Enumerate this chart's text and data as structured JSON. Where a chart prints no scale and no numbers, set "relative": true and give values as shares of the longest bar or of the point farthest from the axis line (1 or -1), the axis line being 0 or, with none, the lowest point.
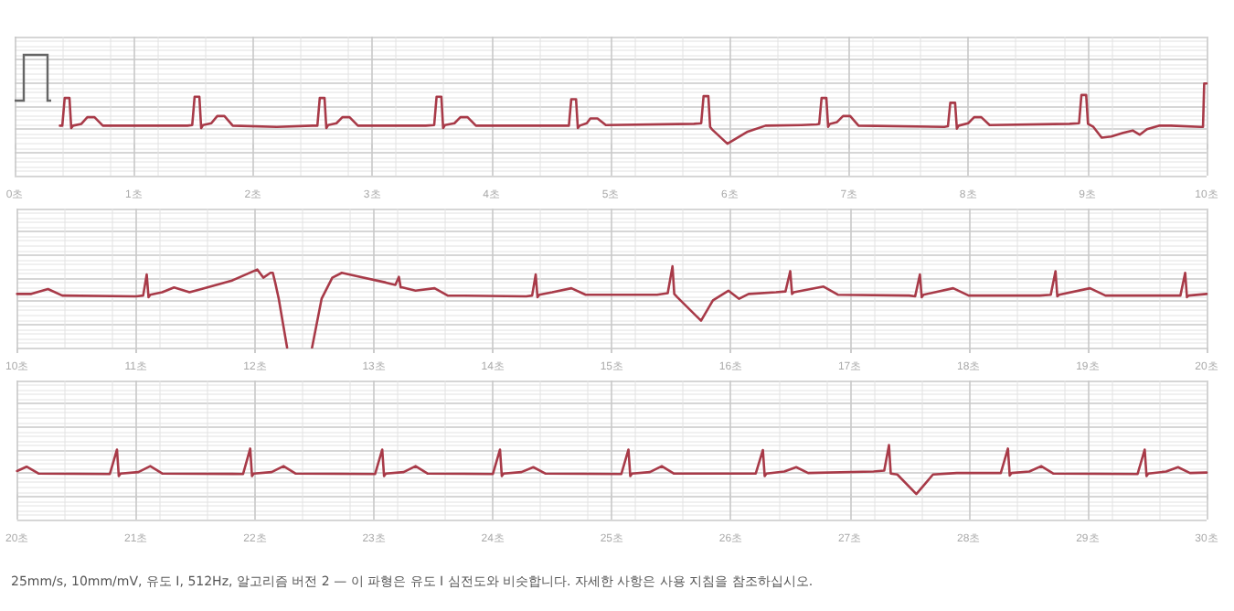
{
  "chart_data": [
    {
      "type": "line",
      "relative": true,
      "grid": true,
      "marker": "none",
      "line_style": "solid",
      "xlim": [
        0,
        10
      ],
      "xticks": [
        {
          "value": 0,
          "label": "0초"
        },
        {
          "value": 1,
          "label": "1초"
        },
        {
          "value": 2,
          "label": "2초"
        },
        {
          "value": 3,
          "label": "3초"
        },
        {
          "value": 4,
          "label": "4초"
        },
        {
          "value": 5,
          "label": "5초"
        },
        {
          "value": 6,
          "label": "6초"
        },
        {
          "value": 7,
          "label": "7초"
        },
        {
          "value": 8,
          "label": "8초"
        },
        {
          "value": 9,
          "label": "9초"
        },
        {
          "value": 10,
          "label": "10초"
        }
      ],
      "series": [
        {
          "color": "#a83a48",
          "x": [
            0.38,
            0.4,
            0.42,
            0.46,
            0.475,
            0.49,
            0.56,
            0.61,
            0.67,
            0.74,
            1.45,
            1.49,
            1.51,
            1.55,
            1.565,
            1.58,
            1.65,
            1.7,
            1.76,
            1.83,
            2.2,
            2.5,
            2.54,
            2.56,
            2.6,
            2.615,
            2.63,
            2.7,
            2.75,
            2.81,
            2.88,
            3.45,
            3.52,
            3.54,
            3.58,
            3.595,
            3.61,
            3.69,
            3.74,
            3.8,
            3.87,
            4.6,
            4.65,
            4.67,
            4.71,
            4.725,
            4.74,
            4.8,
            4.83,
            4.89,
            4.96,
            5.7,
            5.76,
            5.78,
            5.82,
            5.835,
            5.85,
            5.98,
            6.15,
            6.3,
            6.6,
            6.73,
            6.75,
            6.77,
            6.81,
            6.825,
            6.84,
            6.9,
            6.95,
            7.01,
            7.08,
            7.8,
            7.83,
            7.85,
            7.89,
            7.905,
            7.92,
            8.0,
            8.05,
            8.11,
            8.18,
            8.85,
            8.93,
            8.95,
            8.99,
            9.005,
            9.05,
            9.12,
            9.2,
            9.3,
            9.38,
            9.44,
            9.5,
            9.6,
            9.7,
            9.95,
            9.97,
            9.98,
            10.0
          ],
          "values": [
            0.3,
            0.3,
            0.76,
            0.76,
            0.26,
            0.3,
            0.33,
            0.44,
            0.44,
            0.3,
            0.3,
            0.31,
            0.78,
            0.78,
            0.26,
            0.31,
            0.34,
            0.46,
            0.46,
            0.3,
            0.28,
            0.3,
            0.3,
            0.76,
            0.76,
            0.26,
            0.31,
            0.34,
            0.44,
            0.44,
            0.3,
            0.3,
            0.31,
            0.78,
            0.78,
            0.26,
            0.31,
            0.34,
            0.44,
            0.44,
            0.3,
            0.3,
            0.3,
            0.74,
            0.74,
            0.26,
            0.3,
            0.34,
            0.42,
            0.42,
            0.31,
            0.33,
            0.34,
            0.79,
            0.79,
            0.28,
            0.24,
            0.0,
            0.2,
            0.3,
            0.31,
            0.32,
            0.33,
            0.76,
            0.76,
            0.28,
            0.33,
            0.36,
            0.46,
            0.46,
            0.3,
            0.28,
            0.29,
            0.68,
            0.68,
            0.25,
            0.3,
            0.34,
            0.44,
            0.44,
            0.31,
            0.33,
            0.34,
            0.81,
            0.81,
            0.33,
            0.28,
            0.1,
            0.12,
            0.18,
            0.22,
            0.15,
            0.24,
            0.3,
            0.3,
            0.28,
            0.28,
            1.0,
            1.0
          ]
        }
      ]
    },
    {
      "type": "line",
      "relative": true,
      "grid": true,
      "marker": "none",
      "line_style": "solid",
      "xlim": [
        10,
        20
      ],
      "xticks": [
        {
          "value": 10,
          "label": "10초"
        },
        {
          "value": 11,
          "label": "11초"
        },
        {
          "value": 12,
          "label": "12초"
        },
        {
          "value": 13,
          "label": "13초"
        },
        {
          "value": 14,
          "label": "14초"
        },
        {
          "value": 15,
          "label": "15초"
        },
        {
          "value": 16,
          "label": "16초"
        },
        {
          "value": 17,
          "label": "17초"
        },
        {
          "value": 18,
          "label": "18초"
        },
        {
          "value": 19,
          "label": "19초"
        },
        {
          "value": 20,
          "label": "20초"
        }
      ],
      "series": [
        {
          "color": "#a83a48",
          "x": [
            10.0,
            10.12,
            10.26,
            10.38,
            11.0,
            11.06,
            11.09,
            11.105,
            11.12,
            11.22,
            11.32,
            11.45,
            11.55,
            11.8,
            12.02,
            12.07,
            12.13,
            12.15,
            12.17,
            12.2,
            12.27,
            12.33,
            12.48,
            12.56,
            12.65,
            12.73,
            12.85,
            13.1,
            13.18,
            13.21,
            13.225,
            13.24,
            13.35,
            13.51,
            13.62,
            14.28,
            14.33,
            14.36,
            14.375,
            14.39,
            14.5,
            14.66,
            14.78,
            15.38,
            15.47,
            15.51,
            15.525,
            15.55,
            15.75,
            15.85,
            15.98,
            16.07,
            16.15,
            16.38,
            16.46,
            16.5,
            16.515,
            16.53,
            16.78,
            16.9,
            17.5,
            17.55,
            17.59,
            17.605,
            17.62,
            17.87,
            18.0,
            18.6,
            18.69,
            18.73,
            18.745,
            18.76,
            19.02,
            19.15,
            19.6,
            19.78,
            19.82,
            19.835,
            19.85,
            20.0
          ],
          "values": [
            0.66,
            0.66,
            0.72,
            0.64,
            0.63,
            0.64,
            0.9,
            0.62,
            0.65,
            0.68,
            0.74,
            0.68,
            0.72,
            0.82,
            0.96,
            0.86,
            0.92,
            0.92,
            0.8,
            0.6,
            0.0,
            null,
            0.0,
            0.6,
            0.86,
            0.92,
            0.88,
            0.8,
            0.77,
            0.87,
            0.74,
            0.74,
            0.7,
            0.73,
            0.64,
            0.63,
            0.64,
            0.9,
            0.62,
            0.65,
            0.68,
            0.73,
            0.65,
            0.65,
            0.67,
            1.0,
            0.66,
            0.62,
            0.33,
            0.58,
            0.7,
            0.6,
            0.66,
            0.68,
            0.69,
            0.94,
            0.66,
            0.68,
            0.75,
            0.65,
            0.64,
            0.63,
            0.9,
            0.62,
            0.65,
            0.73,
            0.64,
            0.64,
            0.65,
            0.94,
            0.63,
            0.65,
            0.73,
            0.64,
            0.64,
            0.64,
            0.92,
            0.62,
            0.64,
            0.66
          ]
        }
      ]
    },
    {
      "type": "line",
      "relative": true,
      "grid": true,
      "marker": "none",
      "line_style": "solid",
      "xlim": [
        20,
        30
      ],
      "xticks": [
        {
          "value": 20,
          "label": "20초"
        },
        {
          "value": 21,
          "label": "21초"
        },
        {
          "value": 22,
          "label": "22초"
        },
        {
          "value": 23,
          "label": "23초"
        },
        {
          "value": 24,
          "label": "24초"
        },
        {
          "value": 25,
          "label": "25초"
        },
        {
          "value": 26,
          "label": "26초"
        },
        {
          "value": 27,
          "label": "27초"
        },
        {
          "value": 28,
          "label": "28초"
        },
        {
          "value": 29,
          "label": "29초"
        },
        {
          "value": 30,
          "label": "30초"
        }
      ],
      "annotations": [
        "25mm/s, 10mm/mV, 유도 I, 512Hz, 알고리즘 버전 2 — 이 파형은 유도 I 심전도와 비슷합니다. 자세한 사항은 사용 지침을 참조하십시오."
      ],
      "series": [
        {
          "color": "#a83a48",
          "x": [
            20.0,
            20.08,
            20.18,
            20.78,
            20.84,
            20.855,
            20.87,
            21.02,
            21.12,
            21.22,
            21.9,
            21.96,
            21.975,
            21.99,
            22.14,
            22.24,
            22.34,
            23.01,
            23.07,
            23.085,
            23.1,
            23.25,
            23.35,
            23.45,
            24.0,
            24.06,
            24.075,
            24.09,
            24.24,
            24.34,
            24.44,
            25.08,
            25.14,
            25.155,
            25.17,
            25.32,
            25.42,
            25.52,
            26.21,
            26.27,
            26.285,
            26.3,
            26.45,
            26.55,
            26.65,
            27.2,
            27.29,
            27.33,
            27.345,
            27.4,
            27.56,
            27.7,
            27.9,
            28.1,
            28.27,
            28.33,
            28.345,
            28.36,
            28.51,
            28.61,
            28.71,
            29.42,
            29.48,
            29.495,
            29.51,
            29.66,
            29.76,
            29.86,
            30.0
          ],
          "values": [
            0.47,
            0.56,
            0.42,
            0.41,
            0.91,
            0.37,
            0.42,
            0.45,
            0.57,
            0.42,
            0.41,
            0.93,
            0.37,
            0.42,
            0.45,
            0.57,
            0.42,
            0.41,
            0.91,
            0.37,
            0.42,
            0.45,
            0.57,
            0.42,
            0.41,
            0.91,
            0.37,
            0.42,
            0.45,
            0.55,
            0.42,
            0.41,
            0.91,
            0.37,
            0.42,
            0.45,
            0.57,
            0.42,
            0.42,
            0.9,
            0.37,
            0.42,
            0.46,
            0.55,
            0.43,
            0.46,
            0.48,
            1.0,
            0.42,
            0.4,
            0.0,
            0.4,
            0.43,
            0.43,
            0.43,
            0.93,
            0.38,
            0.43,
            0.46,
            0.57,
            0.42,
            0.41,
            0.91,
            0.37,
            0.42,
            0.46,
            0.55,
            0.43,
            0.44
          ]
        }
      ]
    }
  ]
}
